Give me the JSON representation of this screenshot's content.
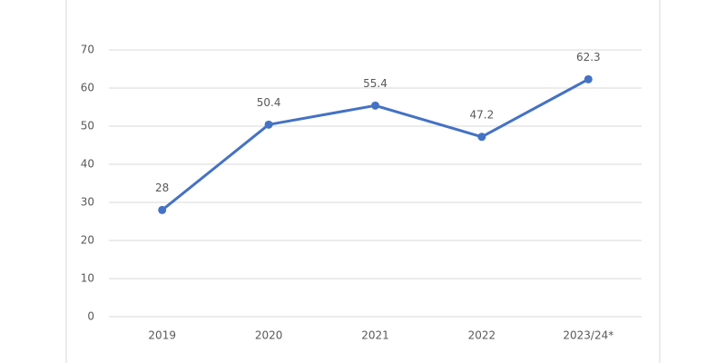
{
  "chart_data": {
    "type": "line",
    "categories": [
      "2019",
      "2020",
      "2021",
      "2022",
      "2023/24*"
    ],
    "values": [
      28,
      50.4,
      55.4,
      47.2,
      62.3
    ],
    "color": "#4472c4",
    "ylim": [
      0,
      70
    ],
    "yticks": [
      0,
      10,
      20,
      30,
      40,
      50,
      60,
      70
    ],
    "grid": true
  }
}
